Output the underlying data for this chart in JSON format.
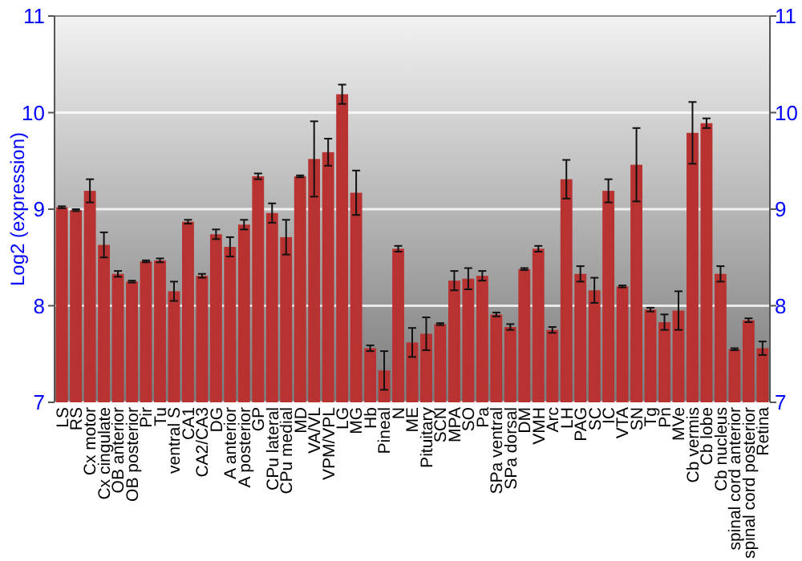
{
  "chart_data": {
    "type": "bar",
    "ylabel": "Log2 (expression)",
    "categories": [
      "LS",
      "RS",
      "Cx motor",
      "Cx cingulate",
      "OB anterior",
      "OB posterior",
      "Pir",
      "Tu",
      "ventral S",
      "CA1",
      "CA2/CA3",
      "DG",
      "A anterior",
      "A posterior",
      "GP",
      "CPu lateral",
      "CPu medial",
      "MD",
      "VA/VL",
      "VPM/VPL",
      "LG",
      "MG",
      "Hb",
      "Pineal",
      "N",
      "ME",
      "Pituitary",
      "SCN",
      "MPA",
      "SO",
      "Pa",
      "SPa ventral",
      "SPa dorsal",
      "DM",
      "VMH",
      "Arc",
      "LH",
      "PAG",
      "SC",
      "IC",
      "VTA",
      "SN",
      "Tg",
      "Pn",
      "MVe",
      "Cb vermis",
      "Cb lobe",
      "Cb nucleus",
      "spinal cord anterior",
      "spinal cord posterior",
      "Retina"
    ],
    "values": [
      9.02,
      8.99,
      9.19,
      8.63,
      8.33,
      8.25,
      8.46,
      8.47,
      8.15,
      8.87,
      8.31,
      8.74,
      8.61,
      8.84,
      9.34,
      8.96,
      8.71,
      9.34,
      9.52,
      9.59,
      10.19,
      9.17,
      7.56,
      7.33,
      8.59,
      7.62,
      7.71,
      7.81,
      8.26,
      8.28,
      8.31,
      7.91,
      7.78,
      8.38,
      8.59,
      7.75,
      9.31,
      8.33,
      8.16,
      9.19,
      8.2,
      9.46,
      7.96,
      7.83,
      7.95,
      9.79,
      9.89,
      8.33,
      7.55,
      7.85,
      7.56
    ],
    "errors": [
      0.01,
      0.01,
      0.12,
      0.13,
      0.03,
      0.01,
      0.01,
      0.02,
      0.1,
      0.02,
      0.02,
      0.05,
      0.1,
      0.05,
      0.03,
      0.1,
      0.18,
      0.01,
      0.39,
      0.14,
      0.1,
      0.23,
      0.03,
      0.2,
      0.03,
      0.15,
      0.17,
      0.01,
      0.1,
      0.11,
      0.05,
      0.02,
      0.03,
      0.01,
      0.03,
      0.03,
      0.2,
      0.08,
      0.13,
      0.12,
      0.01,
      0.38,
      0.02,
      0.08,
      0.2,
      0.32,
      0.05,
      0.08,
      0.01,
      0.02,
      0.07
    ],
    "color": "#b83232",
    "ylim": [
      7,
      11
    ],
    "yticks": [
      7,
      8,
      9,
      10,
      11
    ],
    "y2lim": [
      7,
      11
    ],
    "y2ticks": [
      7,
      8,
      9,
      10,
      11
    ],
    "grid": "y"
  }
}
